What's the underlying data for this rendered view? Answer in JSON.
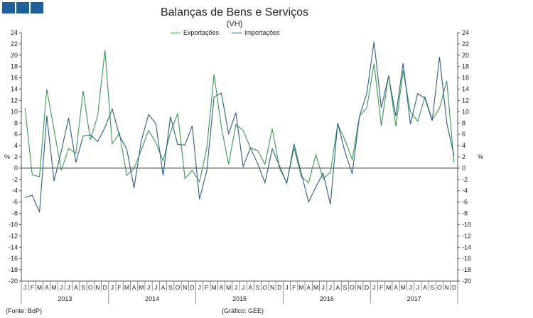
{
  "chart_data": {
    "type": "line",
    "title": "Balanças de Bens e Serviços",
    "subtitle": "(VH)",
    "ylabel": "%",
    "ylim": [
      -20,
      24
    ],
    "yticks": [
      24,
      22,
      20,
      18,
      16,
      14,
      12,
      10,
      8,
      6,
      4,
      2,
      0,
      -2,
      -4,
      -6,
      -8,
      -10,
      -12,
      -14,
      -16,
      -18,
      -20
    ],
    "grid": false,
    "legend_position": "top-center",
    "months": [
      "J",
      "F",
      "M",
      "A",
      "M",
      "J",
      "J",
      "A",
      "S",
      "O",
      "N",
      "D"
    ],
    "years": [
      "2013",
      "2014",
      "2015",
      "2016",
      "2017"
    ],
    "series": [
      {
        "name": "Exportações",
        "color": "#3a9a50",
        "values": [
          10.7,
          -1.2,
          -1.5,
          14.0,
          6.8,
          -0.4,
          3.5,
          2.6,
          13.7,
          5.0,
          9.3,
          20.9,
          4.3,
          6.2,
          -1.3,
          0.0,
          3.2,
          6.7,
          4.5,
          1.3,
          6.3,
          9.7,
          -1.8,
          -0.4,
          -2.4,
          3.5,
          16.6,
          7.3,
          0.7,
          7.7,
          6.7,
          3.6,
          3.1,
          0.7,
          7.0,
          0.0,
          -2.6,
          3.6,
          -1.5,
          -2.6,
          2.4,
          -1.9,
          -0.7,
          7.8,
          5.0,
          1.5,
          9.2,
          10.7,
          18.5,
          7.5,
          16.5,
          7.4,
          17.3,
          10.0,
          8.3,
          12.6,
          8.6,
          10.6,
          15.5,
          1.0
        ]
      },
      {
        "name": "Importações",
        "color": "#2b5d8e",
        "values": [
          -5.2,
          -4.8,
          -7.8,
          9.3,
          -2.3,
          3.0,
          8.9,
          1.0,
          5.7,
          5.9,
          4.7,
          7.2,
          10.5,
          5.7,
          3.4,
          -3.5,
          4.9,
          9.5,
          7.9,
          -1.3,
          9.1,
          4.2,
          4.1,
          7.5,
          -5.5,
          -0.5,
          12.6,
          13.3,
          6.1,
          9.8,
          0.3,
          3.6,
          0.8,
          -2.6,
          3.4,
          0.4,
          -2.7,
          4.3,
          -0.9,
          -6.0,
          -3.3,
          -0.9,
          -6.4,
          8.0,
          2.9,
          -1.0,
          9.2,
          13.2,
          22.4,
          10.7,
          16.3,
          9.2,
          18.6,
          7.8,
          13.2,
          12.4,
          8.4,
          19.7,
          8.0,
          2.2
        ]
      }
    ]
  },
  "labels": {
    "ylabel_left": "%",
    "ylabel_right": "%",
    "source": "(Fonte: BdP)",
    "credit": "(Gráfico: GEE)"
  }
}
